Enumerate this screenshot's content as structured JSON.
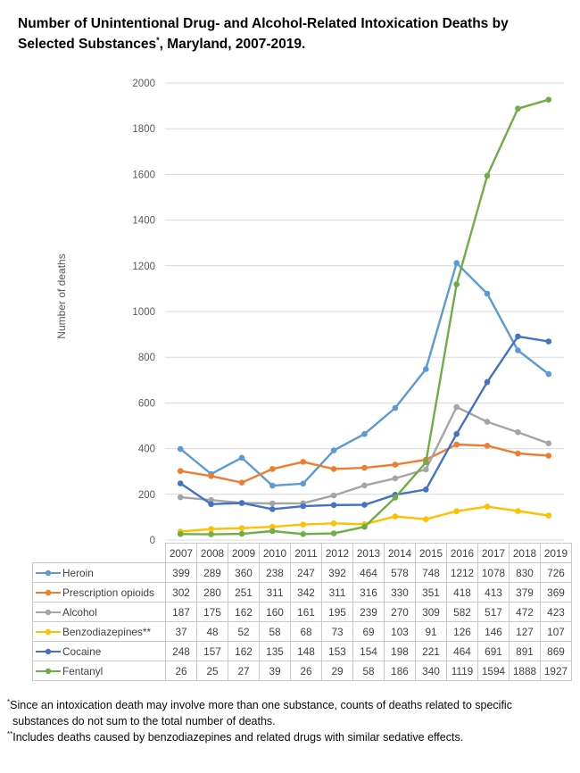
{
  "title": {
    "text_before_sup": "Number of Unintentional Drug- and Alcohol-Related Intoxication Deaths by Selected Substances",
    "sup": "*",
    "text_after_sup": ",  Maryland, 2007-2019."
  },
  "chart_data": {
    "type": "line",
    "title": "Number of Unintentional Drug- and Alcohol-Related Intoxication Deaths by Selected Substances, Maryland, 2007-2019.",
    "xlabel": "",
    "ylabel": "Number of deaths",
    "ylim": [
      0,
      2000
    ],
    "ytick_step": 200,
    "grid": true,
    "grid_color": "#D9D9D9",
    "axis_text_color": "#595959",
    "legend_position": "table-left",
    "categories": [
      "2007",
      "2008",
      "2009",
      "2010",
      "2011",
      "2012",
      "2013",
      "2014",
      "2015",
      "2016",
      "2017",
      "2018",
      "2019"
    ],
    "series": [
      {
        "name": "Heroin",
        "color": "#5B9BD5",
        "values": [
          399,
          289,
          360,
          238,
          247,
          392,
          464,
          578,
          748,
          1212,
          1078,
          830,
          726
        ]
      },
      {
        "name": "Prescription opioids",
        "color": "#ED7D31",
        "values": [
          302,
          280,
          251,
          311,
          342,
          311,
          316,
          330,
          351,
          418,
          413,
          379,
          369
        ]
      },
      {
        "name": "Alcohol",
        "color": "#A5A5A5",
        "values": [
          187,
          175,
          162,
          160,
          161,
          195,
          239,
          270,
          309,
          582,
          517,
          472,
          423
        ]
      },
      {
        "name": "Benzodiazepines**",
        "color": "#FFC000",
        "values": [
          37,
          48,
          52,
          58,
          68,
          73,
          69,
          103,
          91,
          126,
          146,
          127,
          107
        ]
      },
      {
        "name": "Cocaine",
        "color": "#4472C4",
        "values": [
          248,
          157,
          162,
          135,
          148,
          153,
          154,
          198,
          221,
          464,
          691,
          891,
          869
        ]
      },
      {
        "name": "Fentanyl",
        "color": "#70AD47",
        "values": [
          26,
          25,
          27,
          39,
          26,
          29,
          58,
          186,
          340,
          1119,
          1594,
          1888,
          1927
        ]
      }
    ]
  },
  "footnotes": [
    {
      "sup": "*",
      "text": "Since an intoxication death may involve more than one substance, counts of deaths related to specific substances do not sum to the total number of deaths."
    },
    {
      "sup": "**",
      "text": "Includes deaths caused by benzodiazepines and related drugs with similar sedative effects."
    }
  ]
}
